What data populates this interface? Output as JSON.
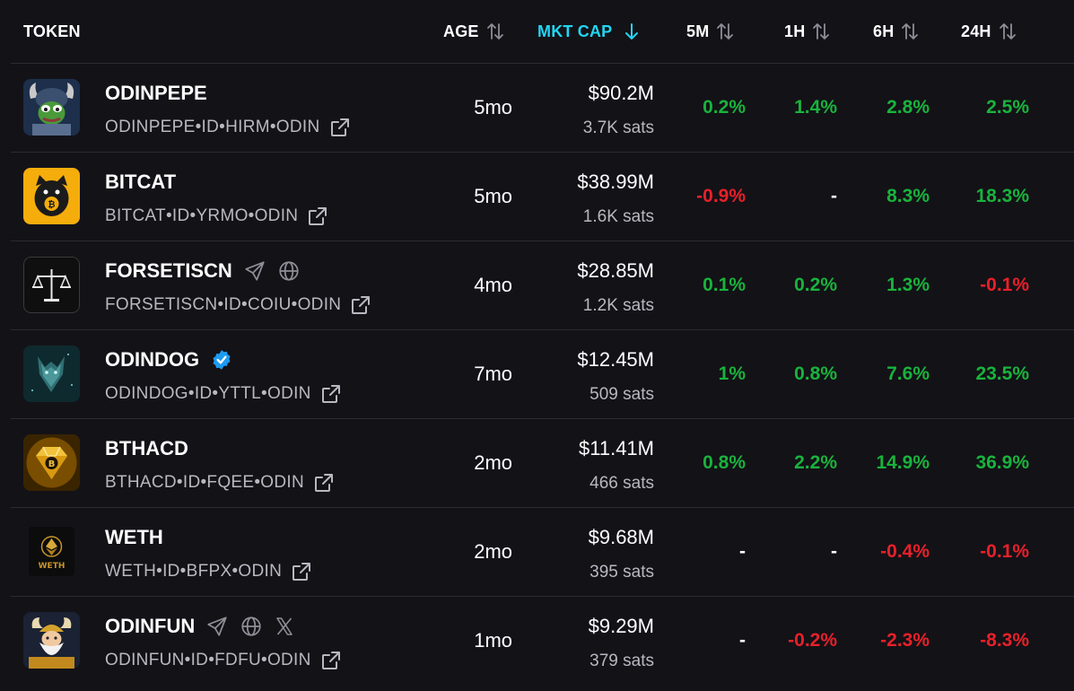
{
  "header": {
    "token": "TOKEN",
    "age": "AGE",
    "mcap": "MKT CAP",
    "m5": "5M",
    "h1": "1H",
    "h6": "6H",
    "h24": "24H"
  },
  "colors": {
    "background": "#131217",
    "positive": "#19b33c",
    "negative": "#e8202a",
    "active_sort": "#21d6f2",
    "muted_text": "#b9b8c0",
    "verified": "#1d9bf0"
  },
  "rows": [
    {
      "name": "ODINPEPE",
      "ticker": "ODINPEPE•ID•HIRM•ODIN",
      "age": "5mo",
      "mcap": "$90.2M",
      "sats": "3.7K sats",
      "m5": "0.2%",
      "h1": "1.4%",
      "h6": "2.8%",
      "h24": "2.5%",
      "avatar_icon": "pepe-viking-avatar"
    },
    {
      "name": "BITCAT",
      "ticker": "BITCAT•ID•YRMO•ODIN",
      "age": "5mo",
      "mcap": "$38.99M",
      "sats": "1.6K sats",
      "m5": "-0.9%",
      "h1": "-",
      "h6": "8.3%",
      "h24": "18.3%",
      "avatar_icon": "bitcat-avatar"
    },
    {
      "name": "FORSETISCN",
      "ticker": "FORSETISCN•ID•COIU•ODIN",
      "age": "4mo",
      "mcap": "$28.85M",
      "sats": "1.2K sats",
      "m5": "0.1%",
      "h1": "0.2%",
      "h6": "1.3%",
      "h24": "-0.1%",
      "avatar_icon": "scales-avatar"
    },
    {
      "name": "ODINDOG",
      "ticker": "ODINDOG•ID•YTTL•ODIN",
      "age": "7mo",
      "mcap": "$12.45M",
      "sats": "509 sats",
      "m5": "1%",
      "h1": "0.8%",
      "h6": "7.6%",
      "h24": "23.5%",
      "avatar_icon": "wolf-avatar"
    },
    {
      "name": "BTHACD",
      "ticker": "BTHACD•ID•FQEE•ODIN",
      "age": "2mo",
      "mcap": "$11.41M",
      "sats": "466 sats",
      "m5": "0.8%",
      "h1": "2.2%",
      "h6": "14.9%",
      "h24": "36.9%",
      "avatar_icon": "gold-diamond-avatar"
    },
    {
      "name": "WETH",
      "ticker": "WETH•ID•BFPX•ODIN",
      "age": "2mo",
      "mcap": "$9.68M",
      "sats": "395 sats",
      "m5": "-",
      "h1": "-",
      "h6": "-0.4%",
      "h24": "-0.1%",
      "avatar_icon": "weth-avatar",
      "avatar_text": "WETH"
    },
    {
      "name": "ODINFUN",
      "ticker": "ODINFUN•ID•FDFU•ODIN",
      "age": "1mo",
      "mcap": "$9.29M",
      "sats": "379 sats",
      "m5": "-",
      "h1": "-0.2%",
      "h6": "-2.3%",
      "h24": "-8.3%",
      "avatar_icon": "odin-avatar"
    }
  ]
}
